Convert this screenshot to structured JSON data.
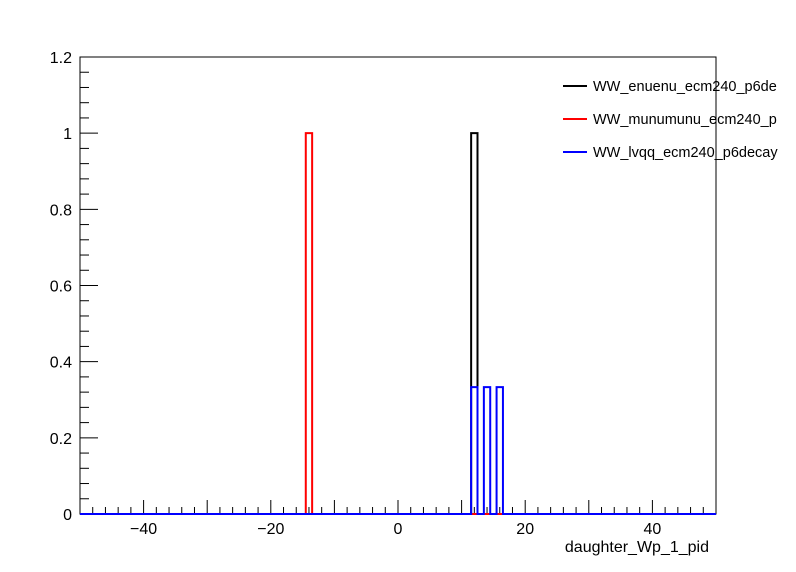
{
  "chart_data": {
    "type": "histogram",
    "xlabel": "daughter_Wp_1_pid",
    "ylabel": "",
    "xlim": [
      -50,
      50
    ],
    "ylim": [
      0,
      1.2
    ],
    "xticks": [
      -40,
      -20,
      0,
      20,
      40
    ],
    "yticks": [
      0,
      0.2,
      0.4,
      0.6,
      0.8,
      1,
      1.2
    ],
    "bin_width": 1,
    "grid": false,
    "legend_position": "top-right",
    "series": [
      {
        "name": "WW_enuenu_ecm240_p6de",
        "color": "#000000",
        "bins": [
          {
            "x0": 11.5,
            "x1": 12.5,
            "y": 1.0
          }
        ]
      },
      {
        "name": "WW_munumunu_ecm240_p",
        "color": "#ff0000",
        "bins": [
          {
            "x0": -14.5,
            "x1": -13.5,
            "y": 1.0
          }
        ]
      },
      {
        "name": "WW_lvqq_ecm240_p6decay",
        "color": "#0000ff",
        "bins": [
          {
            "x0": 11.5,
            "x1": 12.5,
            "y": 0.3333
          },
          {
            "x0": 13.5,
            "x1": 14.5,
            "y": 0.3333
          },
          {
            "x0": 15.5,
            "x1": 16.5,
            "y": 0.3333
          }
        ]
      }
    ]
  }
}
